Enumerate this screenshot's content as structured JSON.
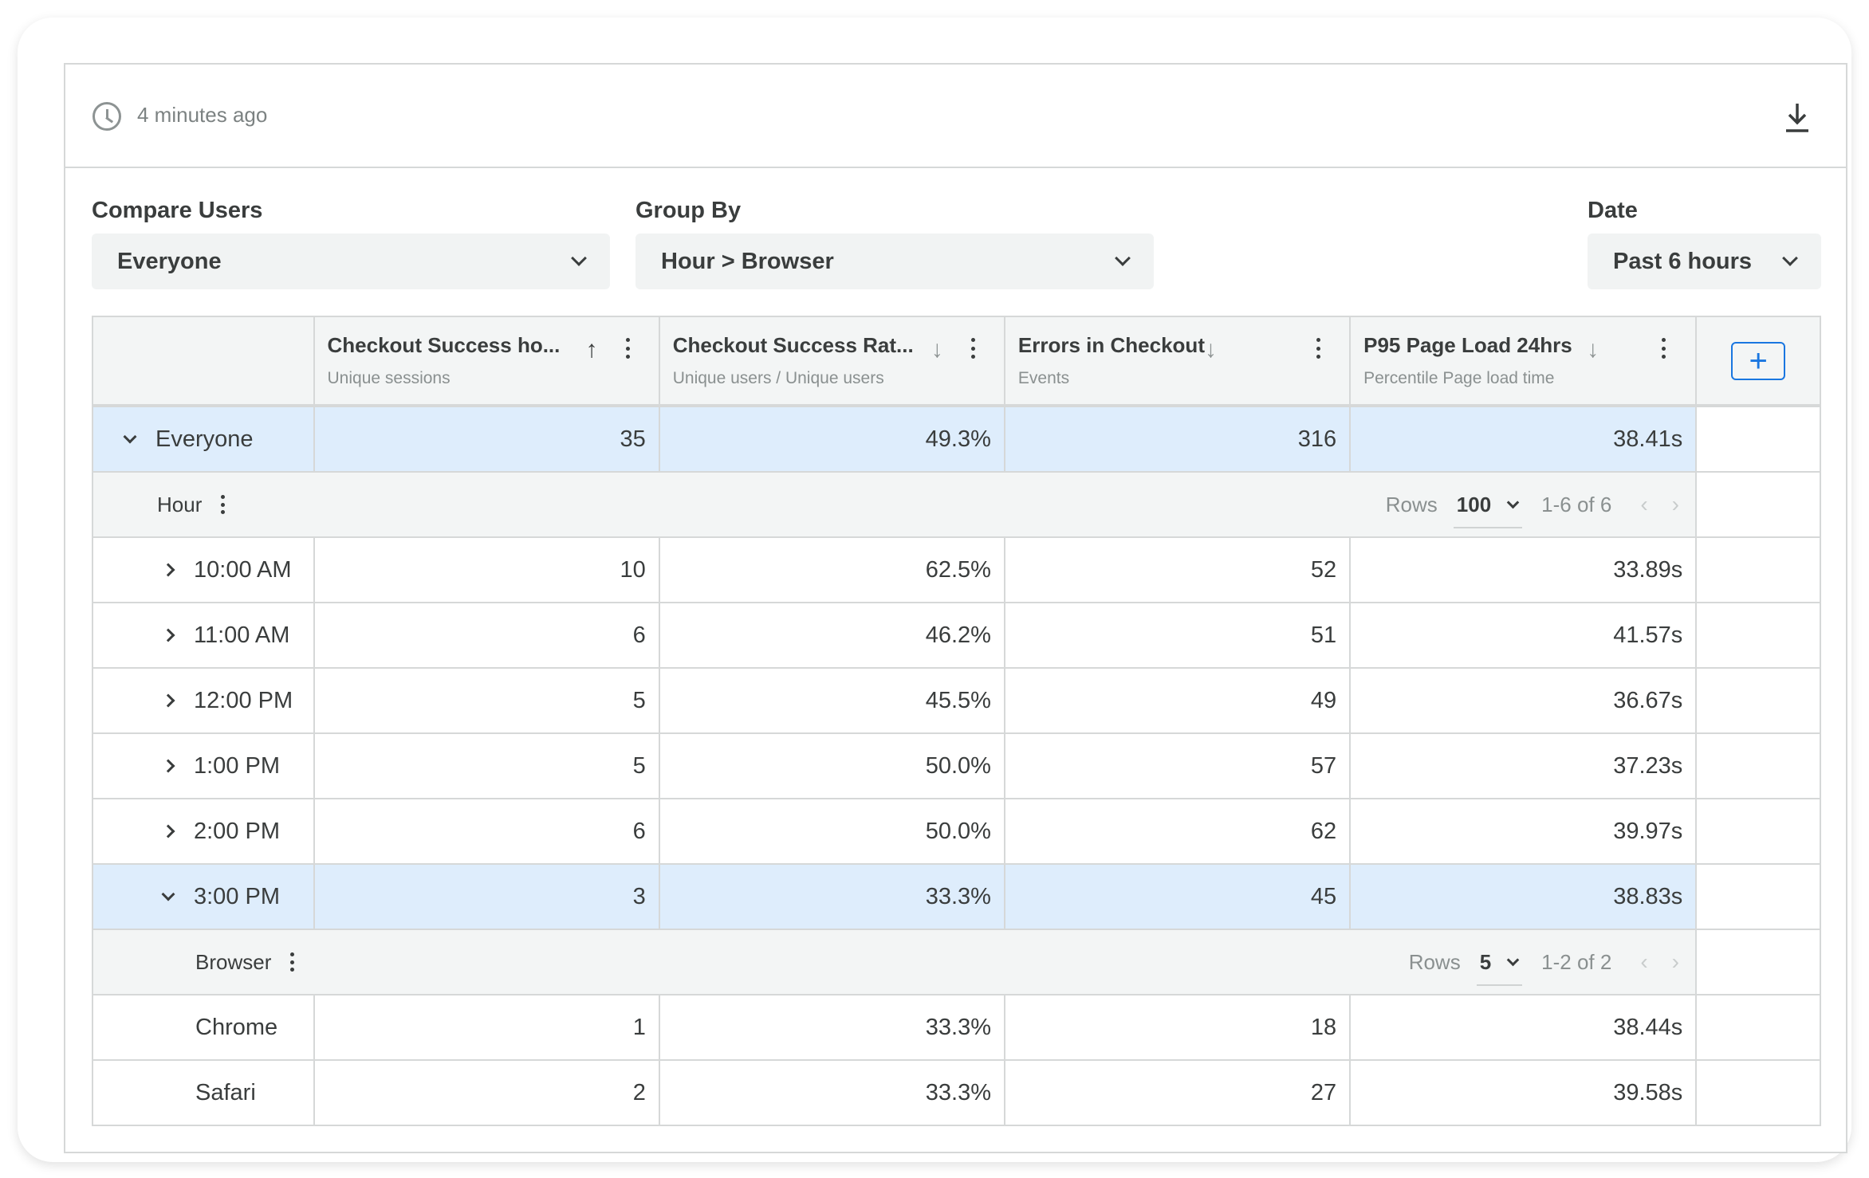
{
  "header": {
    "updated": "4 minutes ago"
  },
  "filters": {
    "compare_users": {
      "label": "Compare Users",
      "value": "Everyone"
    },
    "group_by": {
      "label": "Group By",
      "value": "Hour > Browser"
    },
    "date": {
      "label": "Date",
      "value": "Past 6 hours"
    }
  },
  "columns": [
    {
      "title": "Checkout Success ho...",
      "subtitle": "Unique sessions",
      "sort": "↑"
    },
    {
      "title": "Checkout Success Rat...",
      "subtitle": "Unique users / Unique users",
      "sort": "↓"
    },
    {
      "title": "Errors in Checkout",
      "subtitle": "Events",
      "sort": "↓"
    },
    {
      "title": "P95 Page Load 24hrs",
      "subtitle": "Percentile Page load time",
      "sort": "↓"
    }
  ],
  "add_column": "+",
  "total": {
    "label": "Everyone",
    "values": [
      "35",
      "49.3%",
      "316",
      "38.41s"
    ]
  },
  "hour_group": {
    "label": "Hour",
    "rows_label": "Rows",
    "rows_value": "100",
    "range": "1-6 of 6",
    "prev": "‹",
    "next": "›"
  },
  "hours": [
    {
      "label": "10:00 AM",
      "values": [
        "10",
        "62.5%",
        "52",
        "33.89s"
      ]
    },
    {
      "label": "11:00 AM",
      "values": [
        "6",
        "46.2%",
        "51",
        "41.57s"
      ]
    },
    {
      "label": "12:00 PM",
      "values": [
        "5",
        "45.5%",
        "49",
        "36.67s"
      ]
    },
    {
      "label": "1:00 PM",
      "values": [
        "5",
        "50.0%",
        "57",
        "37.23s"
      ]
    },
    {
      "label": "2:00 PM",
      "values": [
        "6",
        "50.0%",
        "62",
        "39.97s"
      ]
    },
    {
      "label": "3:00 PM",
      "values": [
        "3",
        "33.3%",
        "45",
        "38.83s"
      ]
    }
  ],
  "browser_group": {
    "label": "Browser",
    "rows_label": "Rows",
    "rows_value": "5",
    "range": "1-2 of 2",
    "prev": "‹",
    "next": "›"
  },
  "browsers": [
    {
      "label": "Chrome",
      "values": [
        "1",
        "33.3%",
        "18",
        "38.44s"
      ]
    },
    {
      "label": "Safari",
      "values": [
        "2",
        "33.3%",
        "27",
        "39.58s"
      ]
    }
  ]
}
